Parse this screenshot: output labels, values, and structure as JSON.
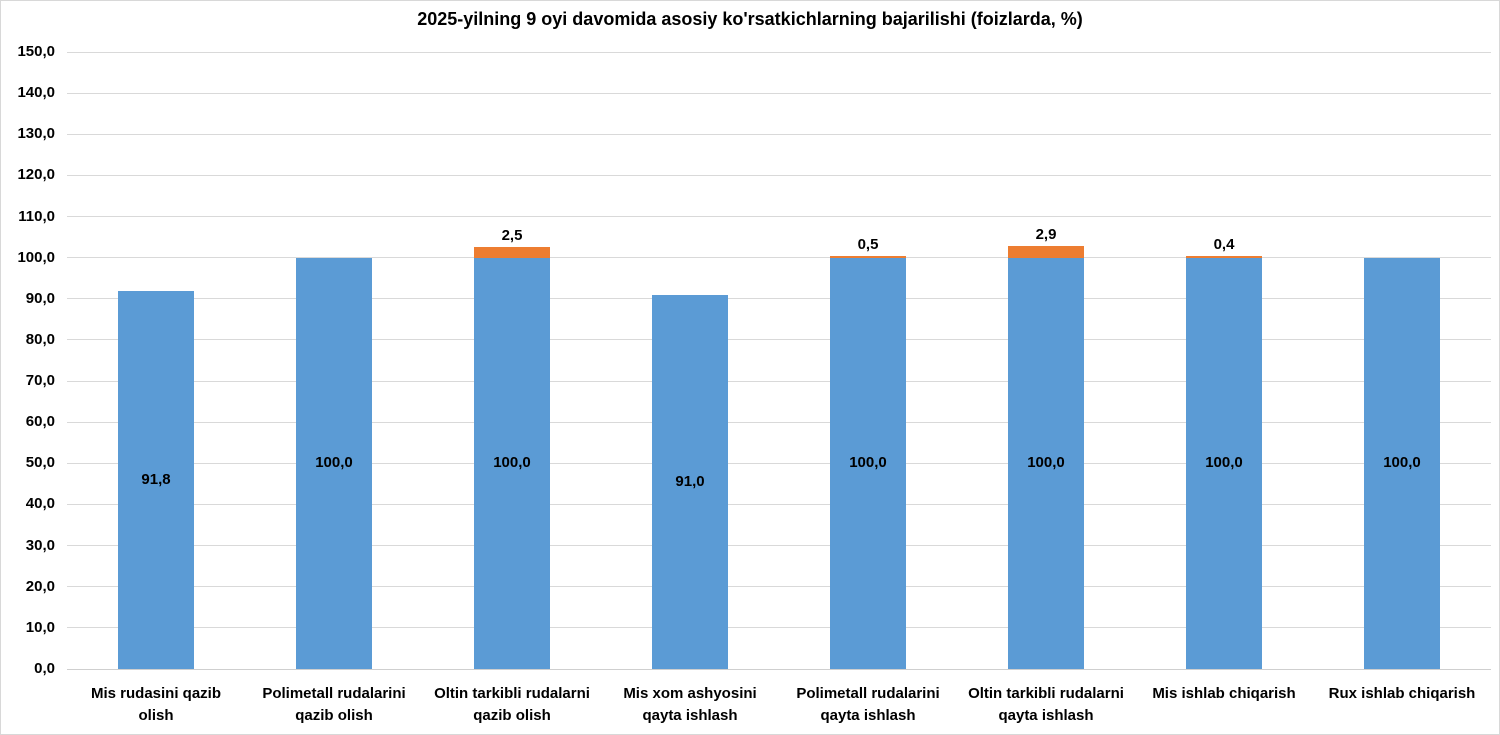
{
  "chart_data": {
    "type": "bar",
    "stacked": true,
    "title": "2025-yilning 9 oyi davomida asosiy ko'rsatkichlarning bajarilishi (foizlarda, %)",
    "categories": [
      "Mis rudasini qazib olish",
      "Polimetall rudalarini qazib olish",
      "Oltin tarkibli rudalarni qazib olish",
      "Mis xom ashyosini qayta ishlash",
      "Polimetall rudalarini qayta ishlash",
      "Oltin tarkibli rudalarni qayta ishlash",
      "Mis ishlab chiqarish",
      "Rux ishlab chiqarish"
    ],
    "category_lines": [
      [
        "Mis rudasini qazib",
        "olish"
      ],
      [
        "Polimetall rudalarini",
        "qazib olish"
      ],
      [
        "Oltin tarkibli rudalarni",
        "qazib olish"
      ],
      [
        "Mis xom ashyosini",
        "qayta ishlash"
      ],
      [
        "Polimetall rudalarini",
        "qayta ishlash"
      ],
      [
        "Oltin tarkibli rudalarni",
        "qayta ishlash"
      ],
      [
        "Mis ishlab chiqarish"
      ],
      [
        "Rux ishlab chiqarish"
      ]
    ],
    "series": [
      {
        "role": "base",
        "color": "#5B9BD5",
        "values": [
          91.8,
          100.0,
          100.0,
          91.0,
          100.0,
          100.0,
          100.0,
          100.0
        ],
        "labels": [
          "91,8",
          "100,0",
          "100,0",
          "91,0",
          "100,0",
          "100,0",
          "100,0",
          "100,0"
        ]
      },
      {
        "role": "overflow",
        "color": "#ED7D31",
        "values": [
          0,
          0,
          2.5,
          0,
          0.5,
          2.9,
          0.4,
          0
        ],
        "labels": [
          "",
          "",
          "2,5",
          "",
          "0,5",
          "2,9",
          "0,4",
          ""
        ]
      }
    ],
    "xlabel": "",
    "ylabel": "",
    "ylim": [
      0,
      150
    ],
    "y_tick_step": 10,
    "y_tick_labels": [
      "0,0",
      "10,0",
      "20,0",
      "30,0",
      "40,0",
      "50,0",
      "60,0",
      "70,0",
      "80,0",
      "90,0",
      "100,0",
      "110,0",
      "120,0",
      "130,0",
      "140,0",
      "150,0"
    ],
    "grid": true,
    "legend": "none"
  },
  "colors": {
    "bar_blue": "#5B9BD5",
    "bar_orange": "#ED7D31",
    "gridline": "#D9D9D9",
    "axis_line": "#CFCFCF",
    "text": "#000000",
    "background": "#FFFFFF",
    "border": "#D8D8D8"
  }
}
